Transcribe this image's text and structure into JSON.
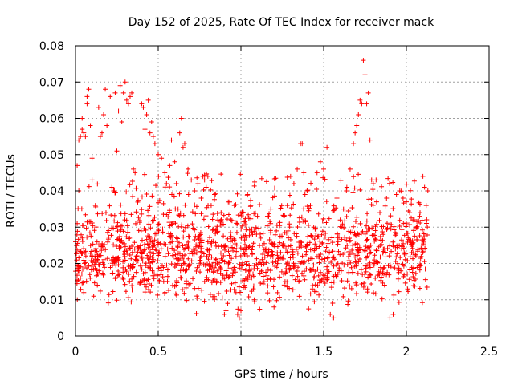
{
  "chart_data": {
    "type": "scatter",
    "title": "Day 152 of 2025, Rate Of TEC Index for receiver mack",
    "xlabel": "GPS time / hours",
    "ylabel": "ROTI / TECUs",
    "xlim": [
      0,
      2.5
    ],
    "ylim": [
      0,
      0.08
    ],
    "x_ticks": [
      0,
      0.5,
      1,
      1.5,
      2,
      2.5
    ],
    "x_tick_labels": [
      "0",
      "0.5",
      "1",
      "1.5",
      "2",
      "2.5"
    ],
    "y_ticks": [
      0,
      0.01,
      0.02,
      0.03,
      0.04,
      0.05,
      0.06,
      0.07,
      0.08
    ],
    "y_tick_labels": [
      "0",
      "0.01",
      "0.02",
      "0.03",
      "0.04",
      "0.05",
      "0.06",
      "0.07",
      "0.08"
    ],
    "grid": true,
    "legend": "none",
    "marker": "+",
    "color": "#ff0000",
    "series": [
      {
        "points": [
          [
            0.0,
            0.026
          ],
          [
            0.01,
            0.031
          ],
          [
            0.01,
            0.047
          ],
          [
            0.02,
            0.054
          ],
          [
            0.02,
            0.04
          ],
          [
            0.02,
            0.018
          ],
          [
            0.03,
            0.055
          ],
          [
            0.03,
            0.016
          ],
          [
            0.04,
            0.057
          ],
          [
            0.04,
            0.06
          ],
          [
            0.05,
            0.056
          ],
          [
            0.05,
            0.012
          ],
          [
            0.06,
            0.055
          ],
          [
            0.07,
            0.064
          ],
          [
            0.07,
            0.066
          ],
          [
            0.08,
            0.068
          ],
          [
            0.09,
            0.058
          ],
          [
            0.1,
            0.049
          ],
          [
            0.1,
            0.043
          ],
          [
            0.11,
            0.011
          ],
          [
            0.12,
            0.036
          ],
          [
            0.13,
            0.026
          ],
          [
            0.14,
            0.063
          ],
          [
            0.15,
            0.055
          ],
          [
            0.16,
            0.056
          ],
          [
            0.17,
            0.061
          ],
          [
            0.18,
            0.068
          ],
          [
            0.19,
            0.058
          ],
          [
            0.21,
            0.066
          ],
          [
            0.22,
            0.041
          ],
          [
            0.23,
            0.04
          ],
          [
            0.24,
            0.067
          ],
          [
            0.25,
            0.051
          ],
          [
            0.26,
            0.062
          ],
          [
            0.27,
            0.069
          ],
          [
            0.28,
            0.059
          ],
          [
            0.29,
            0.067
          ],
          [
            0.3,
            0.07
          ],
          [
            0.31,
            0.065
          ],
          [
            0.32,
            0.064
          ],
          [
            0.33,
            0.066
          ],
          [
            0.34,
            0.067
          ],
          [
            0.35,
            0.046
          ],
          [
            0.36,
            0.045
          ],
          [
            0.37,
            0.021
          ],
          [
            0.39,
            0.024
          ],
          [
            0.4,
            0.064
          ],
          [
            0.41,
            0.063
          ],
          [
            0.42,
            0.057
          ],
          [
            0.43,
            0.061
          ],
          [
            0.44,
            0.065
          ],
          [
            0.45,
            0.056
          ],
          [
            0.46,
            0.059
          ],
          [
            0.47,
            0.055
          ],
          [
            0.48,
            0.053
          ],
          [
            0.5,
            0.05
          ],
          [
            0.52,
            0.049
          ],
          [
            0.54,
            0.045
          ],
          [
            0.55,
            0.042
          ],
          [
            0.57,
            0.047
          ],
          [
            0.58,
            0.054
          ],
          [
            0.6,
            0.048
          ],
          [
            0.61,
            0.042
          ],
          [
            0.62,
            0.035
          ],
          [
            0.63,
            0.056
          ],
          [
            0.64,
            0.06
          ],
          [
            0.65,
            0.052
          ],
          [
            0.66,
            0.053
          ],
          [
            0.68,
            0.046
          ],
          [
            0.7,
            0.043
          ],
          [
            0.72,
            0.04
          ],
          [
            0.74,
            0.042
          ],
          [
            0.76,
            0.038
          ],
          [
            0.77,
            0.044
          ],
          [
            0.78,
            0.043
          ],
          [
            0.79,
            0.041
          ],
          [
            0.8,
            0.044
          ],
          [
            0.82,
            0.036
          ],
          [
            0.84,
            0.039
          ],
          [
            0.86,
            0.032
          ],
          [
            0.88,
            0.034
          ],
          [
            0.9,
            0.006
          ],
          [
            0.91,
            0.007
          ],
          [
            0.92,
            0.009
          ],
          [
            0.94,
            0.032
          ],
          [
            0.96,
            0.036
          ],
          [
            0.97,
            0.012
          ],
          [
            0.98,
            0.006
          ],
          [
            0.99,
            0.005
          ],
          [
            1.0,
            0.007
          ],
          [
            1.02,
            0.014
          ],
          [
            1.04,
            0.039
          ],
          [
            1.06,
            0.036
          ],
          [
            1.08,
            0.01
          ],
          [
            1.1,
            0.033
          ],
          [
            1.12,
            0.027
          ],
          [
            1.14,
            0.015
          ],
          [
            1.16,
            0.033
          ],
          [
            1.18,
            0.031
          ],
          [
            1.2,
            0.008
          ],
          [
            1.22,
            0.02
          ],
          [
            1.24,
            0.023
          ],
          [
            1.26,
            0.033
          ],
          [
            1.28,
            0.036
          ],
          [
            1.3,
            0.044
          ],
          [
            1.32,
            0.042
          ],
          [
            1.34,
            0.046
          ],
          [
            1.36,
            0.053
          ],
          [
            1.37,
            0.053
          ],
          [
            1.38,
            0.045
          ],
          [
            1.4,
            0.04
          ],
          [
            1.42,
            0.036
          ],
          [
            1.44,
            0.03
          ],
          [
            1.46,
            0.045
          ],
          [
            1.48,
            0.048
          ],
          [
            1.5,
            0.046
          ],
          [
            1.52,
            0.052
          ],
          [
            1.54,
            0.006
          ],
          [
            1.56,
            0.005
          ],
          [
            1.58,
            0.038
          ],
          [
            1.6,
            0.032
          ],
          [
            1.62,
            0.035
          ],
          [
            1.64,
            0.041
          ],
          [
            1.66,
            0.046
          ],
          [
            1.68,
            0.053
          ],
          [
            1.69,
            0.056
          ],
          [
            1.7,
            0.058
          ],
          [
            1.71,
            0.061
          ],
          [
            1.72,
            0.065
          ],
          [
            1.73,
            0.064
          ],
          [
            1.74,
            0.076
          ],
          [
            1.75,
            0.072
          ],
          [
            1.76,
            0.064
          ],
          [
            1.77,
            0.067
          ],
          [
            1.78,
            0.054
          ],
          [
            1.79,
            0.043
          ],
          [
            1.8,
            0.042
          ],
          [
            1.82,
            0.037
          ],
          [
            1.84,
            0.034
          ],
          [
            1.86,
            0.028
          ],
          [
            1.88,
            0.038
          ],
          [
            1.9,
            0.005
          ],
          [
            1.92,
            0.006
          ],
          [
            1.94,
            0.039
          ],
          [
            1.96,
            0.04
          ],
          [
            1.98,
            0.038
          ],
          [
            2.0,
            0.037
          ],
          [
            2.02,
            0.034
          ],
          [
            2.04,
            0.032
          ],
          [
            2.06,
            0.03
          ],
          [
            2.08,
            0.033
          ],
          [
            2.1,
            0.044
          ],
          [
            2.11,
            0.041
          ],
          [
            2.12,
            0.036
          ],
          [
            2.13,
            0.04
          ]
        ]
      }
    ],
    "dense_band": {
      "x_range": [
        0.0,
        2.13
      ],
      "y_center_range": [
        0.01,
        0.035
      ],
      "description_values": "majority of points between 0.01 and 0.035"
    }
  }
}
